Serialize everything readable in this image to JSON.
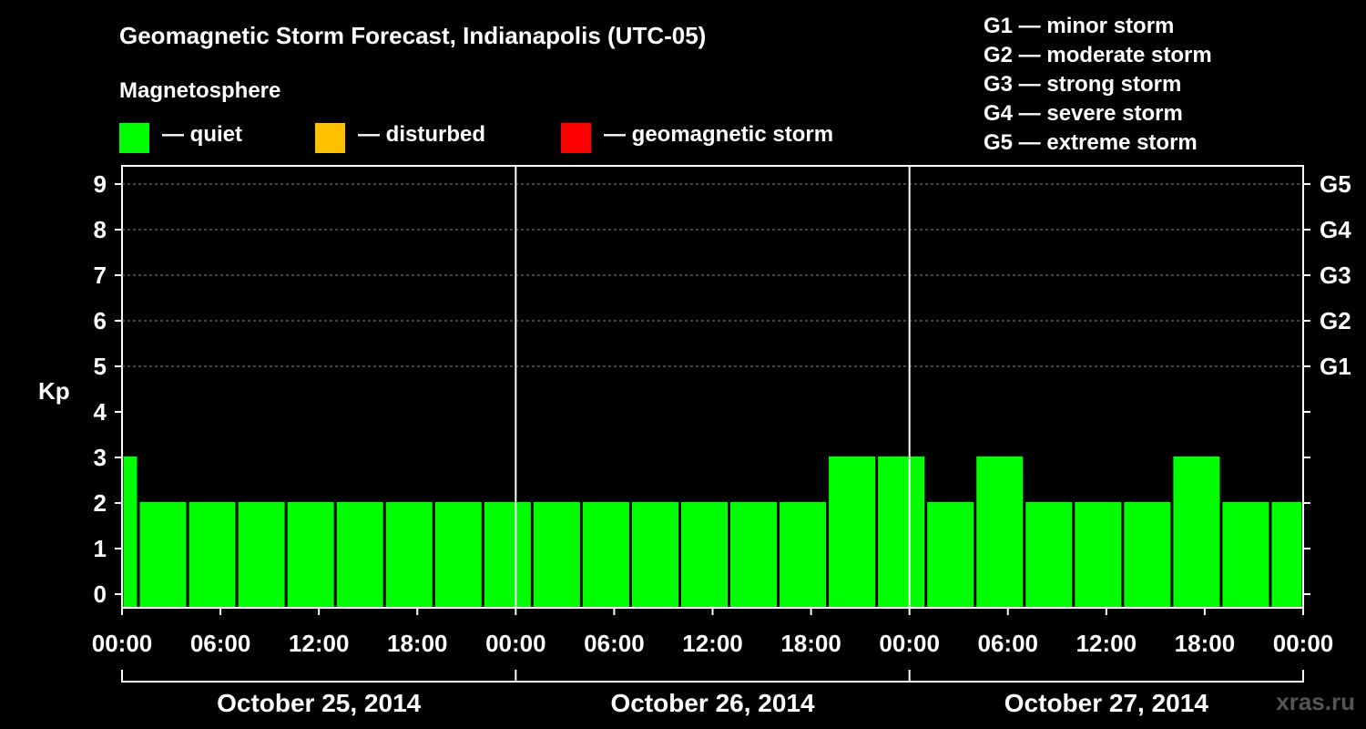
{
  "header": {
    "title": "Geomagnetic Storm Forecast, Indianapolis (UTC-05)",
    "magnetosphere_label": "Magnetosphere"
  },
  "legend": [
    {
      "label": "— quiet",
      "color": "#00ff00"
    },
    {
      "label": "— disturbed",
      "color": "#ffc000"
    },
    {
      "label": "— geomagnetic storm",
      "color": "#ff0000"
    }
  ],
  "storm_levels": [
    "G1 — minor storm",
    "G2 — moderate storm",
    "G3 — strong storm",
    "G4 — severe storm",
    "G5 — extreme storm"
  ],
  "watermark": "xras.ru",
  "chart_data": {
    "type": "bar",
    "title": "Geomagnetic Storm Forecast, Indianapolis (UTC-05)",
    "ylabel": "Kp",
    "ylim": [
      0,
      9
    ],
    "yticks": [
      "0",
      "1",
      "2",
      "3",
      "4",
      "5",
      "6",
      "7",
      "8",
      "9"
    ],
    "right_axis_labels": [
      {
        "kp": 5,
        "label": "G1"
      },
      {
        "kp": 6,
        "label": "G2"
      },
      {
        "kp": 7,
        "label": "G3"
      },
      {
        "kp": 8,
        "label": "G4"
      },
      {
        "kp": 9,
        "label": "G5"
      }
    ],
    "x_range_hours": [
      0,
      72
    ],
    "xtick_labels": [
      "00:00",
      "06:00",
      "12:00",
      "18:00",
      "00:00",
      "06:00",
      "12:00",
      "18:00",
      "00:00",
      "06:00",
      "12:00",
      "18:00",
      "00:00"
    ],
    "days": [
      "October 25, 2014",
      "October 26, 2014",
      "October 27, 2014"
    ],
    "bars": [
      {
        "start": 0,
        "end": 1,
        "kp": 3
      },
      {
        "start": 1,
        "end": 4,
        "kp": 2
      },
      {
        "start": 4,
        "end": 7,
        "kp": 2
      },
      {
        "start": 7,
        "end": 10,
        "kp": 2
      },
      {
        "start": 10,
        "end": 13,
        "kp": 2
      },
      {
        "start": 13,
        "end": 16,
        "kp": 2
      },
      {
        "start": 16,
        "end": 19,
        "kp": 2
      },
      {
        "start": 19,
        "end": 22,
        "kp": 2
      },
      {
        "start": 22,
        "end": 25,
        "kp": 2
      },
      {
        "start": 25,
        "end": 28,
        "kp": 2
      },
      {
        "start": 28,
        "end": 31,
        "kp": 2
      },
      {
        "start": 31,
        "end": 34,
        "kp": 2
      },
      {
        "start": 34,
        "end": 37,
        "kp": 2
      },
      {
        "start": 37,
        "end": 40,
        "kp": 2
      },
      {
        "start": 40,
        "end": 43,
        "kp": 2
      },
      {
        "start": 43,
        "end": 46,
        "kp": 3
      },
      {
        "start": 46,
        "end": 49,
        "kp": 3
      },
      {
        "start": 49,
        "end": 52,
        "kp": 2
      },
      {
        "start": 52,
        "end": 55,
        "kp": 3
      },
      {
        "start": 55,
        "end": 58,
        "kp": 2
      },
      {
        "start": 58,
        "end": 61,
        "kp": 2
      },
      {
        "start": 61,
        "end": 64,
        "kp": 2
      },
      {
        "start": 64,
        "end": 67,
        "kp": 3
      },
      {
        "start": 67,
        "end": 70,
        "kp": 2
      },
      {
        "start": 70,
        "end": 72,
        "kp": 2
      }
    ],
    "bar_color": "#00ff00"
  }
}
